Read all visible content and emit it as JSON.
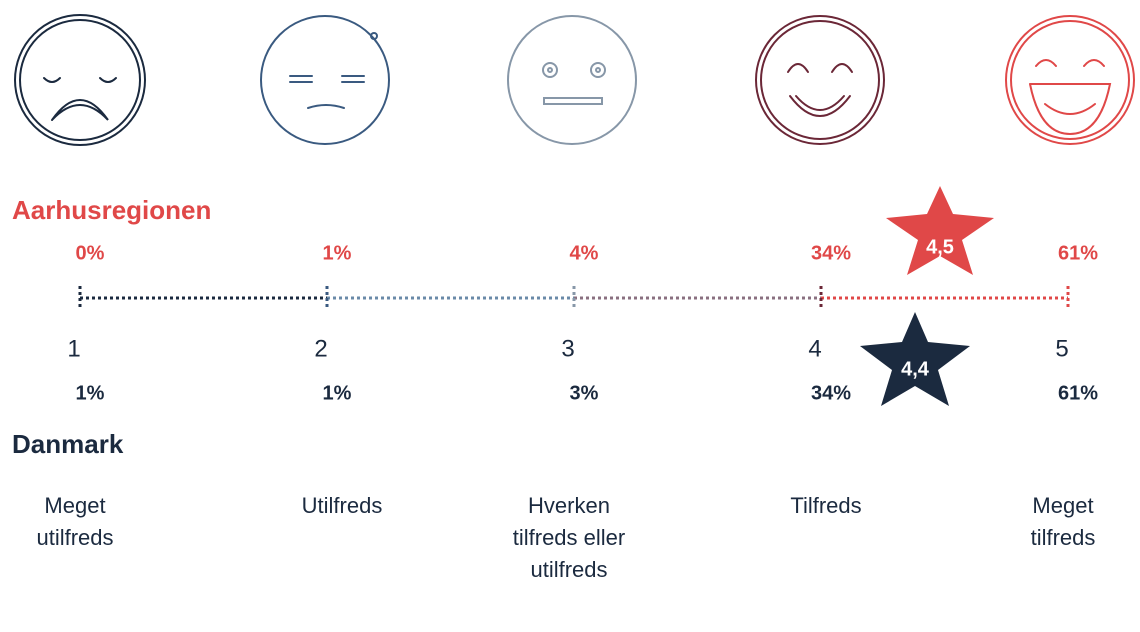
{
  "regions": [
    {
      "name": "Aarhusregionen",
      "percentages": [
        "0%",
        "1%",
        "4%",
        "34%",
        "61%"
      ],
      "average": "4,5"
    },
    {
      "name": "Danmark",
      "percentages": [
        "1%",
        "1%",
        "3%",
        "34%",
        "61%"
      ],
      "average": "4,4"
    }
  ],
  "scale": [
    {
      "value": "1",
      "label": "Meget utilfreds"
    },
    {
      "value": "2",
      "label": "Utilfreds"
    },
    {
      "value": "3",
      "label": "Hverken tilfreds eller utilfreds"
    },
    {
      "value": "4",
      "label": "Tilfreds"
    },
    {
      "value": "5",
      "label": "Meget tilfreds"
    }
  ]
}
